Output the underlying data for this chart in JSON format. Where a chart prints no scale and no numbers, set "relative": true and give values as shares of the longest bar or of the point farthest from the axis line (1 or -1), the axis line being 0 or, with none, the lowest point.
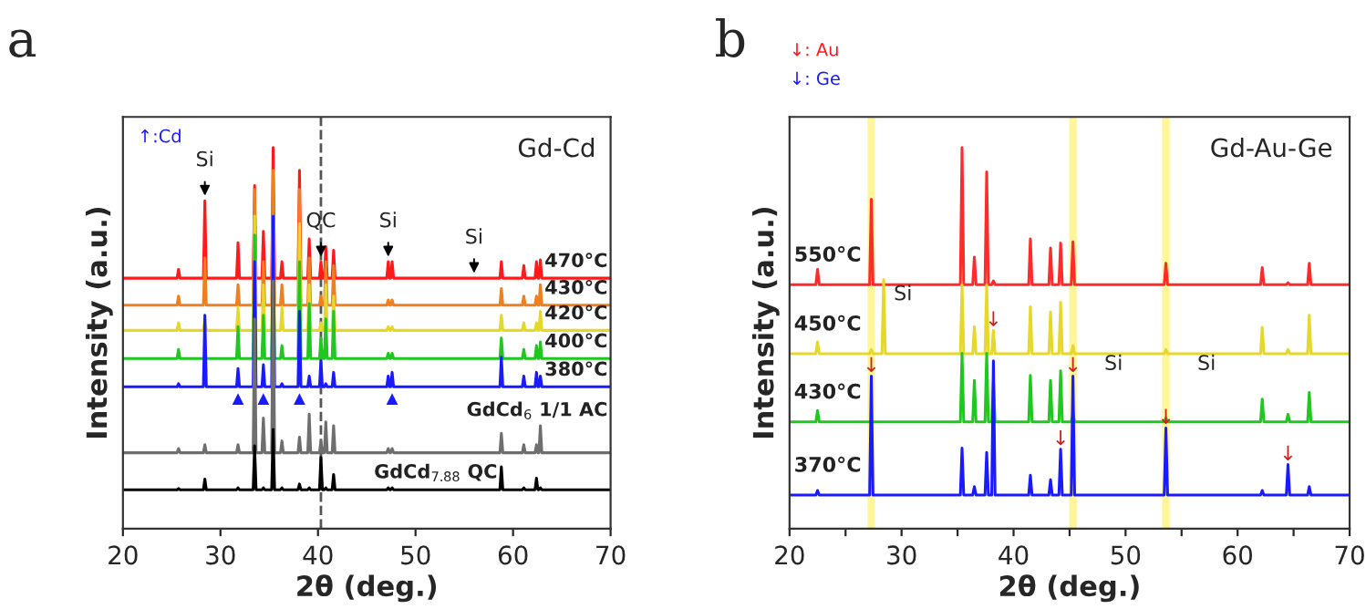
{
  "chart_data": [
    {
      "type": "line",
      "title": "a",
      "xlabel": "2θ (deg.)",
      "ylabel": "Intensity (a.u.)",
      "relative": true,
      "xlim": [
        20,
        70
      ],
      "xticks": [
        20,
        30,
        40,
        50,
        60,
        70
      ],
      "tick_labels": "x",
      "legend": false,
      "grid": false,
      "x": [
        20,
        25.55,
        25.7,
        25.85,
        28.25,
        28.4,
        28.55,
        31.65,
        31.8,
        31.95,
        33.35,
        33.5,
        33.65,
        34.25,
        34.4,
        34.55,
        35.25,
        35.4,
        35.55,
        36.15,
        36.3,
        36.45,
        37.95,
        38.1,
        38.25,
        38.95,
        39.1,
        39.25,
        40.15,
        40.3,
        40.45,
        40.65,
        40.8,
        40.95,
        41.45,
        41.6,
        41.75,
        47.05,
        47.2,
        47.35,
        47.45,
        47.6,
        47.75,
        58.65,
        58.8,
        58.95,
        60.95,
        61.1,
        61.25,
        62.25,
        62.4,
        62.55,
        62.65,
        62.8,
        62.95,
        70
      ],
      "series": [
        {
          "name": "470°C",
          "color": "#ff1a1a",
          "values": [
            0.657,
            0.657,
            0.68,
            0.657,
            0.657,
            0.86,
            0.657,
            0.657,
            0.75,
            0.657,
            0.657,
            0.9,
            0.657,
            0.657,
            0.78,
            0.657,
            0.657,
            1.0,
            0.657,
            0.657,
            0.7,
            0.657,
            0.657,
            0.94,
            0.657,
            0.657,
            0.76,
            0.657,
            0.657,
            0.7,
            0.657,
            0.657,
            0.74,
            0.657,
            0.657,
            0.73,
            0.657,
            0.657,
            0.7,
            0.657,
            0.657,
            0.7,
            0.657,
            0.657,
            0.7,
            0.657,
            0.657,
            0.69,
            0.657,
            0.657,
            0.7,
            0.657,
            0.657,
            0.705,
            0.657,
            0.657
          ]
        },
        {
          "name": "430°C",
          "color": "#f07f1e",
          "values": [
            0.586,
            0.586,
            0.61,
            0.586,
            0.586,
            0.71,
            0.586,
            0.586,
            0.64,
            0.586,
            0.586,
            0.89,
            0.586,
            0.586,
            0.7,
            0.586,
            0.586,
            0.94,
            0.586,
            0.586,
            0.64,
            0.586,
            0.586,
            0.89,
            0.586,
            0.586,
            0.71,
            0.586,
            0.586,
            0.61,
            0.586,
            0.586,
            0.7,
            0.586,
            0.586,
            0.69,
            0.586,
            0.586,
            0.6,
            0.586,
            0.586,
            0.6,
            0.586,
            0.586,
            0.63,
            0.586,
            0.586,
            0.61,
            0.586,
            0.586,
            0.61,
            0.586,
            0.586,
            0.64,
            0.586,
            0.586
          ]
        },
        {
          "name": "420°C",
          "color": "#e5d82a",
          "values": [
            0.52,
            0.52,
            0.54,
            0.52,
            0.52,
            0.55,
            0.52,
            0.52,
            0.58,
            0.52,
            0.52,
            0.82,
            0.52,
            0.52,
            0.64,
            0.52,
            0.52,
            0.82,
            0.52,
            0.52,
            0.58,
            0.52,
            0.52,
            0.8,
            0.52,
            0.52,
            0.64,
            0.52,
            0.52,
            0.54,
            0.52,
            0.52,
            0.64,
            0.52,
            0.52,
            0.61,
            0.52,
            0.52,
            0.53,
            0.52,
            0.52,
            0.53,
            0.52,
            0.52,
            0.56,
            0.52,
            0.52,
            0.54,
            0.52,
            0.52,
            0.54,
            0.52,
            0.52,
            0.57,
            0.52,
            0.52
          ]
        },
        {
          "name": "400°C",
          "color": "#1ec81e",
          "values": [
            0.446,
            0.446,
            0.47,
            0.446,
            0.446,
            null,
            0.446,
            0.446,
            0.53,
            0.446,
            0.446,
            0.77,
            0.446,
            0.446,
            0.56,
            0.446,
            0.446,
            0.75,
            0.446,
            0.446,
            0.48,
            0.446,
            0.446,
            0.7,
            0.446,
            0.446,
            0.59,
            0.446,
            0.446,
            0.5,
            0.446,
            0.446,
            0.55,
            0.446,
            0.446,
            0.57,
            0.446,
            0.446,
            0.46,
            0.446,
            0.446,
            0.46,
            0.446,
            0.446,
            0.5,
            0.446,
            0.446,
            0.47,
            0.446,
            0.446,
            0.48,
            0.446,
            0.446,
            0.49,
            0.446,
            0.446
          ]
        },
        {
          "name": "380°C",
          "color": "#1a1aff",
          "values": [
            0.372,
            0.372,
            0.38,
            0.372,
            0.372,
            0.56,
            0.372,
            0.372,
            0.42,
            0.372,
            0.372,
            0.7,
            0.372,
            0.372,
            0.43,
            0.372,
            0.372,
            0.82,
            0.372,
            0.372,
            0.38,
            0.372,
            0.372,
            0.57,
            0.372,
            0.372,
            0.4,
            0.372,
            0.372,
            0.44,
            0.372,
            0.372,
            0.38,
            0.372,
            0.372,
            0.41,
            0.372,
            0.372,
            0.4,
            0.372,
            0.372,
            0.41,
            0.372,
            0.372,
            0.45,
            0.372,
            0.372,
            0.4,
            0.372,
            0.372,
            0.41,
            0.372,
            0.372,
            0.4,
            0.372,
            0.372
          ]
        },
        {
          "name": "GdCd$_{6}$ 1/1 AC",
          "color": "#6e6e6e",
          "values": [
            0.199,
            0.199,
            0.21,
            0.199,
            0.199,
            0.22,
            0.199,
            0.199,
            0.22,
            0.199,
            0.199,
            0.55,
            0.199,
            0.199,
            0.29,
            0.199,
            0.199,
            0.65,
            0.199,
            0.199,
            0.23,
            0.199,
            0.199,
            0.24,
            0.199,
            0.199,
            0.3,
            0.199,
            0.199,
            0.23,
            0.199,
            0.199,
            0.28,
            0.199,
            0.199,
            0.27,
            0.199,
            0.199,
            0.21,
            0.199,
            0.199,
            0.21,
            0.199,
            0.199,
            0.25,
            0.199,
            0.199,
            0.22,
            0.199,
            0.199,
            0.22,
            0.199,
            0.199,
            0.27,
            0.199,
            0.199
          ]
        },
        {
          "name": "GdCd$_{7.88}$ QC",
          "color": "#000000",
          "values": [
            0.102,
            0.102,
            0.105,
            0.102,
            0.102,
            0.13,
            0.102,
            0.102,
            0.107,
            0.102,
            0.102,
            0.217,
            0.102,
            0.102,
            0.107,
            0.102,
            0.102,
            0.26,
            0.102,
            0.102,
            0.107,
            0.102,
            0.102,
            0.117,
            0.102,
            0.102,
            0.107,
            0.102,
            0.102,
            0.187,
            0.102,
            0.102,
            0.107,
            0.102,
            0.102,
            0.142,
            0.102,
            0.102,
            0.107,
            0.102,
            0.102,
            0.107,
            0.102,
            0.102,
            0.162,
            0.102,
            0.102,
            0.107,
            0.102,
            0.102,
            0.132,
            0.102,
            0.102,
            0.107,
            0.102,
            0.102
          ]
        }
      ],
      "ref_lines": [
        {
          "axis": "x",
          "value": 40.3,
          "color": "#555555",
          "line_style": "dashed"
        }
      ],
      "annotations": [
        "Gd-Cd",
        "↑:Cd",
        {
          "text": "Si",
          "x": 28.4,
          "y": 0.86
        },
        {
          "text": "QC",
          "x": 40.3,
          "y": 0.7
        },
        {
          "text": "Si",
          "x": 47.2,
          "y": 0.7
        },
        {
          "text": "Si",
          "x": 56.0,
          "y": 0.657
        },
        {
          "text": "▲",
          "x": 31.8,
          "y": 0.36
        },
        {
          "text": "▲",
          "x": 34.4,
          "y": 0.36
        },
        {
          "text": "▲",
          "x": 38.1,
          "y": 0.36
        },
        {
          "text": "▲",
          "x": 47.6,
          "y": 0.36
        }
      ]
    },
    {
      "type": "line",
      "title": "b",
      "xlabel": "2θ (deg.)",
      "ylabel": "Intensity (a.u.)",
      "relative": true,
      "xlim": [
        20,
        70
      ],
      "xticks": [
        20,
        {
          "value": 25,
          "label": null
        },
        30,
        {
          "value": 35,
          "label": null
        },
        40,
        {
          "value": 45,
          "label": null
        },
        50,
        {
          "value": 55,
          "label": null
        },
        60,
        {
          "value": 65,
          "label": null
        },
        70
      ],
      "tick_labels": "x",
      "legend": false,
      "grid": false,
      "x": [
        20,
        22.35,
        22.5,
        22.65,
        27.15,
        27.3,
        27.45,
        28.25,
        28.4,
        28.55,
        35.25,
        35.4,
        35.55,
        36.35,
        36.5,
        36.65,
        37.45,
        37.6,
        37.75,
        38.05,
        38.2,
        38.35,
        41.35,
        41.5,
        41.65,
        43.15,
        43.3,
        43.45,
        44.05,
        44.2,
        44.35,
        45.15,
        45.3,
        45.45,
        53.45,
        53.6,
        53.75,
        62.05,
        62.2,
        62.35,
        64.35,
        64.5,
        64.65,
        66.25,
        66.4,
        66.55,
        70
      ],
      "series": [
        {
          "name": "550°C",
          "color": "#ff2a2a",
          "values": [
            0.64,
            0.64,
            0.68,
            0.64,
            0.64,
            0.864,
            0.64,
            0.64,
            0.64,
            0.64,
            0.64,
            1.0,
            0.64,
            0.64,
            0.712,
            0.64,
            0.64,
            0.936,
            0.64,
            0.64,
            0.65,
            0.64,
            0.64,
            0.76,
            0.64,
            0.64,
            0.736,
            0.64,
            0.64,
            0.749,
            0.64,
            0.64,
            0.752,
            0.64,
            0.64,
            0.696,
            0.64,
            0.64,
            0.685,
            0.64,
            0.64,
            0.645,
            0.64,
            0.64,
            0.696,
            0.64,
            0.64
          ]
        },
        {
          "name": "450°C",
          "color": "#e5d82a",
          "values": [
            0.459,
            0.459,
            0.49,
            0.459,
            0.459,
            0.47,
            0.459,
            0.459,
            0.653,
            0.459,
            0.459,
            0.64,
            0.459,
            0.459,
            0.53,
            0.459,
            0.459,
            0.64,
            0.459,
            0.459,
            0.52,
            0.459,
            0.459,
            0.582,
            0.459,
            0.459,
            0.568,
            0.459,
            0.459,
            0.594,
            0.459,
            0.459,
            0.48,
            0.459,
            0.459,
            0.47,
            0.459,
            0.459,
            0.528,
            0.459,
            0.459,
            0.47,
            0.459,
            0.459,
            0.56,
            0.459,
            0.459
          ]
        },
        {
          "name": "430°C",
          "color": "#1ec81e",
          "values": [
            0.28,
            0.28,
            0.31,
            0.28,
            0.28,
            null,
            0.28,
            0.28,
            0.28,
            0.28,
            0.28,
            0.46,
            0.28,
            0.28,
            0.389,
            0.28,
            0.28,
            0.46,
            0.28,
            0.28,
            0.386,
            0.28,
            0.28,
            0.402,
            0.28,
            0.28,
            0.389,
            0.28,
            0.28,
            0.414,
            0.28,
            0.28,
            0.3,
            0.28,
            0.28,
            0.29,
            0.28,
            0.28,
            0.34,
            0.28,
            0.28,
            0.3,
            0.28,
            0.28,
            0.357,
            0.28,
            0.28
          ]
        },
        {
          "name": "370°C",
          "color": "#1a1aff",
          "values": [
            0.088,
            0.088,
            0.1,
            0.088,
            0.088,
            0.4,
            0.088,
            0.088,
            0.088,
            0.088,
            0.088,
            0.211,
            0.088,
            0.088,
            0.11,
            0.088,
            0.088,
            0.2,
            0.088,
            0.088,
            0.44,
            0.088,
            0.088,
            0.14,
            0.088,
            0.088,
            0.128,
            0.088,
            0.088,
            0.208,
            0.088,
            0.088,
            0.4,
            0.088,
            0.088,
            0.264,
            0.088,
            0.088,
            0.1,
            0.088,
            0.088,
            0.168,
            0.088,
            0.088,
            0.11,
            0.088,
            0.088
          ]
        }
      ],
      "ref_lines": [
        {
          "axis": "x",
          "value": 27.3,
          "color": "#fff59a"
        },
        {
          "axis": "x",
          "value": 45.3,
          "color": "#fff59a"
        },
        {
          "axis": "x",
          "value": 53.6,
          "color": "#fff59a"
        }
      ],
      "annotations": [
        "Gd-Au-Ge",
        "↓: Au",
        "↓: Ge",
        {
          "text": "Si",
          "x": 28.4,
          "y": 0.653
        },
        {
          "text": "Si",
          "x": 47.2,
          "y": 0.47
        },
        {
          "text": "Si",
          "x": 55.5,
          "y": 0.47
        },
        {
          "text": "↓",
          "x": 27.3,
          "y": 0.4
        },
        {
          "text": "↓",
          "x": 38.2,
          "y": 0.52
        },
        {
          "text": "↓",
          "x": 44.2,
          "y": 0.208
        },
        {
          "text": "↓",
          "x": 45.3,
          "y": 0.4
        },
        {
          "text": "↓",
          "x": 53.6,
          "y": 0.264
        },
        {
          "text": "↓",
          "x": 64.5,
          "y": 0.168
        }
      ]
    }
  ]
}
